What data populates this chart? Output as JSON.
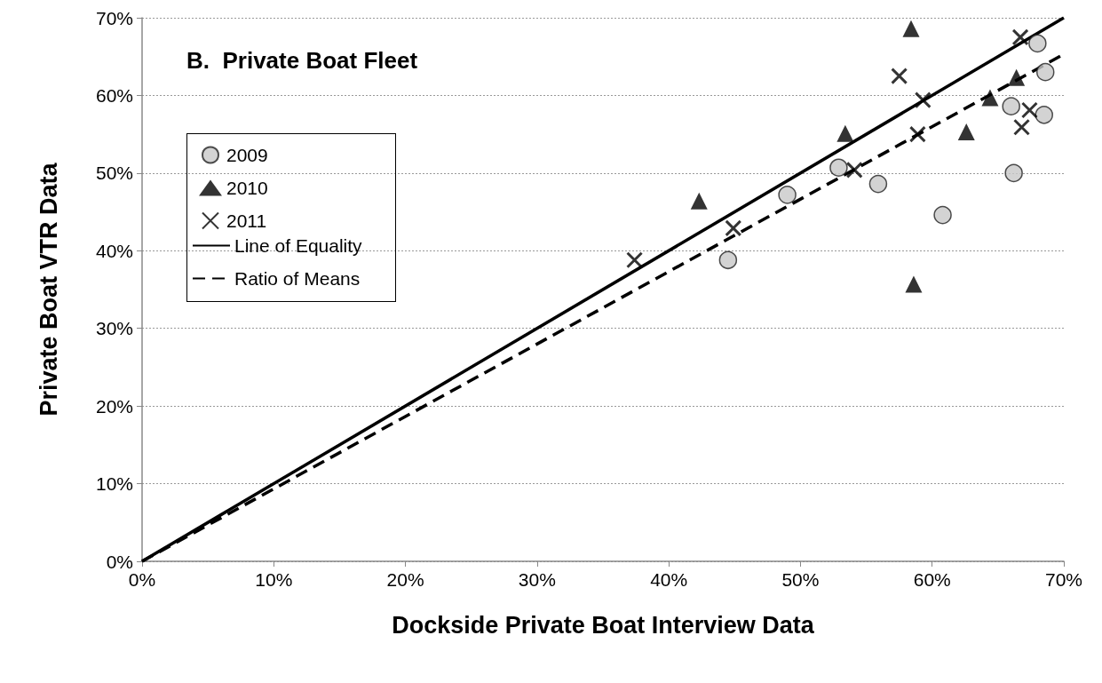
{
  "chart_data": {
    "type": "scatter",
    "title": "B.  Private Boat Fleet",
    "xlabel": "Dockside Private Boat Interview Data",
    "ylabel": "Private Boat VTR Data",
    "xlim": [
      0,
      70
    ],
    "ylim": [
      0,
      70
    ],
    "xticks": [
      {
        "value": 0,
        "label": "0%"
      },
      {
        "value": 10,
        "label": "10%"
      },
      {
        "value": 20,
        "label": "20%"
      },
      {
        "value": 30,
        "label": "30%"
      },
      {
        "value": 40,
        "label": "40%"
      },
      {
        "value": 50,
        "label": "50%"
      },
      {
        "value": 60,
        "label": "60%"
      },
      {
        "value": 70,
        "label": "70%"
      }
    ],
    "yticks": [
      {
        "value": 0,
        "label": "0%"
      },
      {
        "value": 10,
        "label": "10%"
      },
      {
        "value": 20,
        "label": "20%"
      },
      {
        "value": 30,
        "label": "30%"
      },
      {
        "value": 40,
        "label": "40%"
      },
      {
        "value": 50,
        "label": "50%"
      },
      {
        "value": 60,
        "label": "60%"
      },
      {
        "value": 70,
        "label": "70%"
      }
    ],
    "grid": "y",
    "legend": "top left",
    "series": [
      {
        "name": "2009",
        "color": "#c8c8c8",
        "marker": "circle",
        "x": [
          44.5,
          49.0,
          52.9,
          55.9,
          60.8,
          66.0,
          66.2,
          68.0,
          68.5,
          68.6
        ],
        "values": [
          38.8,
          47.2,
          50.7,
          48.6,
          44.6,
          58.6,
          50.0,
          66.7,
          57.5,
          63.0
        ]
      },
      {
        "name": "2010",
        "color": "#000000",
        "marker": "triangle",
        "x": [
          42.3,
          53.4,
          58.4,
          58.6,
          62.6,
          64.4,
          66.4
        ],
        "values": [
          46.4,
          55.1,
          68.6,
          35.7,
          55.3,
          59.7,
          62.3
        ]
      },
      {
        "name": "2011",
        "color": "#000000",
        "marker": "cross",
        "x": [
          37.4,
          44.9,
          54.1,
          57.5,
          58.9,
          59.3,
          66.7,
          66.8,
          67.4
        ],
        "values": [
          38.8,
          42.9,
          50.4,
          62.5,
          55.0,
          59.4,
          67.5,
          55.9,
          58.1
        ]
      },
      {
        "name": "Line of Equality",
        "type": "line",
        "color": "#000000",
        "marker": "none",
        "line_style": "solid",
        "x": [
          0,
          70
        ],
        "values": [
          0,
          70
        ]
      },
      {
        "name": "Ratio of Means",
        "type": "line",
        "color": "#000000",
        "marker": "none",
        "line_style": "dashed",
        "x": [
          0,
          70
        ],
        "values": [
          0,
          65.3
        ]
      }
    ]
  }
}
